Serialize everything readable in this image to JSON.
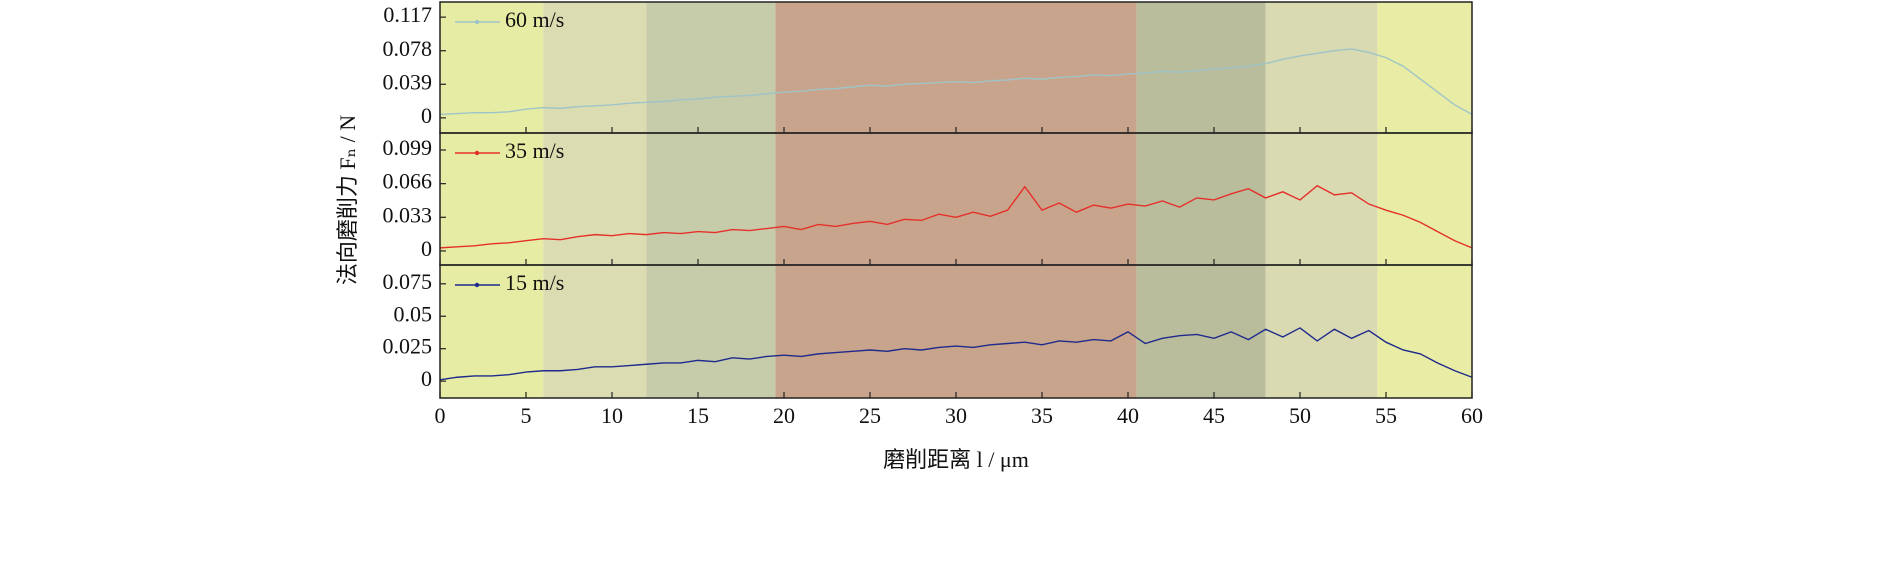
{
  "background_bands": [
    {
      "from": 0,
      "to": 6,
      "color": "#e6eca4"
    },
    {
      "from": 6,
      "to": 12,
      "color": "#dcdcb2"
    },
    {
      "from": 12,
      "to": 19.5,
      "color": "#c6cbaa"
    },
    {
      "from": 19.5,
      "to": 40.5,
      "color": "#c9a48c"
    },
    {
      "from": 40.5,
      "to": 48,
      "color": "#b9bd9c"
    },
    {
      "from": 48,
      "to": 54.5,
      "color": "#d9d9b2"
    },
    {
      "from": 54.5,
      "to": 60,
      "color": "#e8eca4"
    }
  ],
  "chart_data": [
    {
      "type": "line",
      "x": [
        0,
        1,
        2,
        3,
        4,
        5,
        6,
        7,
        8,
        9,
        10,
        11,
        12,
        13,
        14,
        15,
        16,
        17,
        18,
        19,
        20,
        21,
        22,
        23,
        24,
        25,
        26,
        27,
        28,
        29,
        30,
        31,
        32,
        33,
        34,
        35,
        36,
        37,
        38,
        39,
        40,
        41,
        42,
        43,
        44,
        45,
        46,
        47,
        48,
        49,
        50,
        51,
        52,
        53,
        54,
        55,
        56,
        57,
        58,
        59,
        60
      ],
      "series": [
        {
          "name": "60 m/s",
          "color": "#9fc4c8",
          "values": [
            0.004,
            0.005,
            0.006,
            0.006,
            0.007,
            0.01,
            0.012,
            0.011,
            0.013,
            0.014,
            0.015,
            0.017,
            0.018,
            0.019,
            0.021,
            0.022,
            0.024,
            0.025,
            0.026,
            0.028,
            0.03,
            0.031,
            0.033,
            0.034,
            0.036,
            0.038,
            0.037,
            0.039,
            0.04,
            0.041,
            0.042,
            0.041,
            0.043,
            0.044,
            0.046,
            0.045,
            0.047,
            0.048,
            0.05,
            0.049,
            0.051,
            0.052,
            0.054,
            0.053,
            0.055,
            0.057,
            0.058,
            0.06,
            0.063,
            0.068,
            0.072,
            0.075,
            0.078,
            0.08,
            0.076,
            0.07,
            0.06,
            0.045,
            0.03,
            0.015,
            0.004
          ]
        }
      ],
      "xlim": [
        0,
        60
      ],
      "xticks": [
        0,
        5,
        10,
        15,
        20,
        25,
        30,
        35,
        40,
        45,
        50,
        55,
        60
      ],
      "ylim": [
        -0.0176,
        0.1346
      ],
      "yticks": [
        0,
        0.039,
        0.078,
        0.117
      ]
    },
    {
      "type": "line",
      "x": [
        0,
        1,
        2,
        3,
        4,
        5,
        6,
        7,
        8,
        9,
        10,
        11,
        12,
        13,
        14,
        15,
        16,
        17,
        18,
        19,
        20,
        21,
        22,
        23,
        24,
        25,
        26,
        27,
        28,
        29,
        30,
        31,
        32,
        33,
        34,
        35,
        36,
        37,
        38,
        39,
        40,
        41,
        42,
        43,
        44,
        45,
        46,
        47,
        48,
        49,
        50,
        51,
        52,
        53,
        54,
        55,
        56,
        57,
        58,
        59,
        60
      ],
      "series": [
        {
          "name": "35 m/s",
          "color": "#e5302a",
          "values": [
            0.003,
            0.004,
            0.005,
            0.007,
            0.008,
            0.01,
            0.012,
            0.011,
            0.014,
            0.016,
            0.015,
            0.017,
            0.016,
            0.018,
            0.017,
            0.019,
            0.018,
            0.021,
            0.02,
            0.022,
            0.024,
            0.021,
            0.026,
            0.024,
            0.027,
            0.029,
            0.026,
            0.031,
            0.03,
            0.036,
            0.033,
            0.038,
            0.034,
            0.04,
            0.063,
            0.04,
            0.047,
            0.038,
            0.045,
            0.042,
            0.046,
            0.044,
            0.049,
            0.043,
            0.052,
            0.05,
            0.056,
            0.061,
            0.052,
            0.058,
            0.05,
            0.064,
            0.055,
            0.057,
            0.046,
            0.04,
            0.035,
            0.028,
            0.019,
            0.01,
            0.003
          ]
        }
      ],
      "xlim": [
        0,
        60
      ],
      "xticks": [
        0,
        5,
        10,
        15,
        20,
        25,
        30,
        35,
        40,
        45,
        50,
        55,
        60
      ],
      "ylim": [
        -0.0138,
        0.1157
      ],
      "yticks": [
        0,
        0.033,
        0.066,
        0.099
      ],
      "ylabel": "法向磨削力 Fₙ / N"
    },
    {
      "type": "line",
      "x": [
        0,
        1,
        2,
        3,
        4,
        5,
        6,
        7,
        8,
        9,
        10,
        11,
        12,
        13,
        14,
        15,
        16,
        17,
        18,
        19,
        20,
        21,
        22,
        23,
        24,
        25,
        26,
        27,
        28,
        29,
        30,
        31,
        32,
        33,
        34,
        35,
        36,
        37,
        38,
        39,
        40,
        41,
        42,
        43,
        44,
        45,
        46,
        47,
        48,
        49,
        50,
        51,
        52,
        53,
        54,
        55,
        56,
        57,
        58,
        59,
        60
      ],
      "series": [
        {
          "name": "15 m/s",
          "color": "#1e2a8c",
          "values": [
            0.001,
            0.003,
            0.004,
            0.004,
            0.005,
            0.007,
            0.008,
            0.008,
            0.009,
            0.011,
            0.011,
            0.012,
            0.013,
            0.014,
            0.014,
            0.016,
            0.015,
            0.018,
            0.017,
            0.019,
            0.02,
            0.019,
            0.021,
            0.022,
            0.023,
            0.024,
            0.023,
            0.025,
            0.024,
            0.026,
            0.027,
            0.026,
            0.028,
            0.029,
            0.03,
            0.028,
            0.031,
            0.03,
            0.032,
            0.031,
            0.038,
            0.029,
            0.033,
            0.035,
            0.036,
            0.033,
            0.038,
            0.032,
            0.04,
            0.034,
            0.041,
            0.031,
            0.04,
            0.033,
            0.039,
            0.03,
            0.024,
            0.021,
            0.014,
            0.008,
            0.003
          ]
        }
      ],
      "xlim": [
        0,
        60
      ],
      "xticks": [
        0,
        5,
        10,
        15,
        20,
        25,
        30,
        35,
        40,
        45,
        50,
        55,
        60
      ],
      "ylim": [
        -0.013,
        0.0895
      ],
      "yticks": [
        0,
        0.025,
        0.05,
        0.075
      ],
      "xlabel": "磨削距离 l / μm"
    }
  ]
}
